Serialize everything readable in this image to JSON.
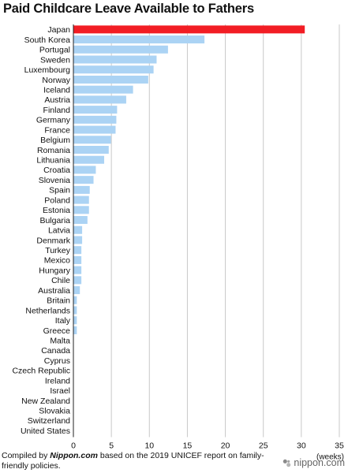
{
  "chart_data": {
    "type": "bar",
    "orientation": "horizontal",
    "title": "Paid Childcare Leave Available to Fathers",
    "xlabel": "",
    "unit_label": "(weeks)",
    "xlim": [
      0,
      35
    ],
    "xticks": [
      0,
      5,
      10,
      15,
      20,
      25,
      30,
      35
    ],
    "grid": true,
    "categories": [
      "Japan",
      "South Korea",
      "Portugal",
      "Sweden",
      "Luxembourg",
      "Norway",
      "Iceland",
      "Austria",
      "Finland",
      "Germany",
      "France",
      "Belgium",
      "Romania",
      "Lithuania",
      "Croatia",
      "Slovenia",
      "Spain",
      "Poland",
      "Estonia",
      "Bulgaria",
      "Latvia",
      "Denmark",
      "Turkey",
      "Mexico",
      "Hungary",
      "Chile",
      "Australia",
      "Britain",
      "Netherlands",
      "Italy",
      "Greece",
      "Malta",
      "Canada",
      "Cyprus",
      "Czech Republic",
      "Ireland",
      "Israel",
      "New Zealand",
      "Slovakia",
      "Switzerland",
      "United States"
    ],
    "values": [
      30.4,
      17.2,
      12.4,
      10.9,
      10.5,
      9.8,
      7.8,
      6.9,
      5.7,
      5.6,
      5.5,
      4.9,
      4.6,
      4.0,
      2.9,
      2.6,
      2.1,
      2.0,
      2.0,
      1.8,
      1.1,
      1.1,
      1.0,
      1.0,
      1.0,
      1.0,
      0.8,
      0.4,
      0.4,
      0.4,
      0.4,
      0,
      0,
      0,
      0,
      0,
      0,
      0,
      0,
      0,
      0
    ],
    "colors": {
      "highlight": "#f21d24",
      "bar": "#abd3f4",
      "grid": "#c8c8c8"
    }
  },
  "footer": {
    "prefix": "Compiled by ",
    "source": "Nippon.com",
    "suffix": " based on the 2019 UNICEF report on family-friendly policies."
  },
  "logo": {
    "text": "nippon.com",
    "icon": "nippon-logo-icon"
  }
}
